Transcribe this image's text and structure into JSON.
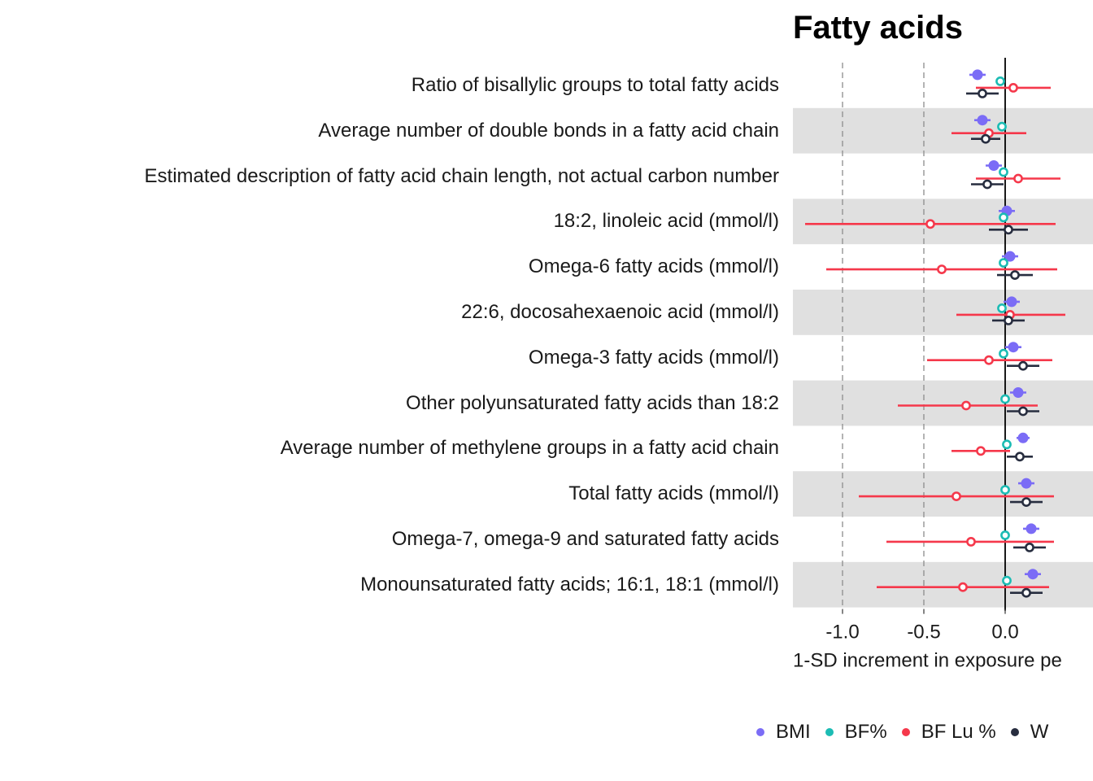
{
  "chart_data": {
    "type": "forest",
    "title": "Fatty acids",
    "xlabel": "1-SD increment in exposure pe",
    "xlim": [
      -1.3,
      0.45
    ],
    "xticks": [
      -1.0,
      -0.5,
      0.0
    ],
    "xtick_labels": [
      "-1.0",
      "-0.5",
      "0.0"
    ],
    "reference_lines": [
      -1.0,
      -0.5
    ],
    "zero_line": 0.0,
    "categories": [
      "Ratio of bisallylic groups to total fatty acids",
      "Average number of double bonds in a fatty acid chain",
      "Estimated description of fatty acid chain length, not actual carbon number",
      "18:2, linoleic acid (mmol/l)",
      "Omega-6 fatty acids (mmol/l)",
      "22:6, docosahexaenoic acid (mmol/l)",
      "Omega-3 fatty acids (mmol/l)",
      "Other polyunsaturated fatty acids than 18:2",
      "Average number of methylene groups in a fatty acid chain",
      "Total fatty acids (mmol/l)",
      "Omega-7, omega-9 and saturated fatty acids",
      "Monounsaturated fatty acids; 16:1, 18:1 (mmol/l)"
    ],
    "series": [
      {
        "name": "BMI",
        "color": "#7b6cf6",
        "filled": true,
        "est": [
          -0.17,
          -0.14,
          -0.07,
          0.01,
          0.03,
          0.04,
          0.05,
          0.08,
          0.11,
          0.13,
          0.16,
          0.17
        ],
        "lower": [
          -0.22,
          -0.19,
          -0.12,
          -0.04,
          -0.02,
          -0.01,
          0.0,
          0.03,
          0.07,
          0.08,
          0.11,
          0.12
        ],
        "upper": [
          -0.12,
          -0.09,
          -0.02,
          0.06,
          0.08,
          0.09,
          0.1,
          0.13,
          0.15,
          0.18,
          0.21,
          0.22
        ]
      },
      {
        "name": "BF%",
        "color": "#1cbcb4",
        "filled": false,
        "est": [
          -0.03,
          -0.02,
          -0.01,
          -0.01,
          -0.01,
          -0.02,
          -0.01,
          0.0,
          0.01,
          0.0,
          0.0,
          0.01
        ],
        "lower": [
          -0.05,
          -0.04,
          -0.03,
          -0.03,
          -0.03,
          -0.04,
          -0.03,
          -0.02,
          -0.01,
          -0.02,
          -0.02,
          -0.01
        ],
        "upper": [
          -0.01,
          0.0,
          0.01,
          0.01,
          0.01,
          0.0,
          0.01,
          0.02,
          0.03,
          0.02,
          0.02,
          0.03
        ]
      },
      {
        "name": "BF Lu %",
        "color": "#f5384b",
        "filled": false,
        "est": [
          0.05,
          -0.1,
          0.08,
          -0.46,
          -0.39,
          0.03,
          -0.1,
          -0.24,
          -0.15,
          -0.3,
          -0.21,
          -0.26
        ],
        "lower": [
          -0.18,
          -0.33,
          -0.18,
          -1.23,
          -1.1,
          -0.3,
          -0.48,
          -0.66,
          -0.33,
          -0.9,
          -0.73,
          -0.79
        ],
        "upper": [
          0.28,
          0.13,
          0.34,
          0.31,
          0.32,
          0.37,
          0.29,
          0.2,
          0.03,
          0.3,
          0.3,
          0.27
        ]
      },
      {
        "name": "W",
        "color": "#272d3f",
        "filled": false,
        "est": [
          -0.14,
          -0.12,
          -0.11,
          0.02,
          0.06,
          0.02,
          0.11,
          0.11,
          0.09,
          0.13,
          0.15,
          0.13
        ],
        "lower": [
          -0.24,
          -0.21,
          -0.21,
          -0.1,
          -0.05,
          -0.08,
          0.01,
          0.01,
          0.01,
          0.03,
          0.05,
          0.03
        ],
        "upper": [
          -0.04,
          -0.03,
          -0.01,
          0.14,
          0.17,
          0.12,
          0.21,
          0.21,
          0.17,
          0.23,
          0.25,
          0.23
        ]
      }
    ]
  }
}
